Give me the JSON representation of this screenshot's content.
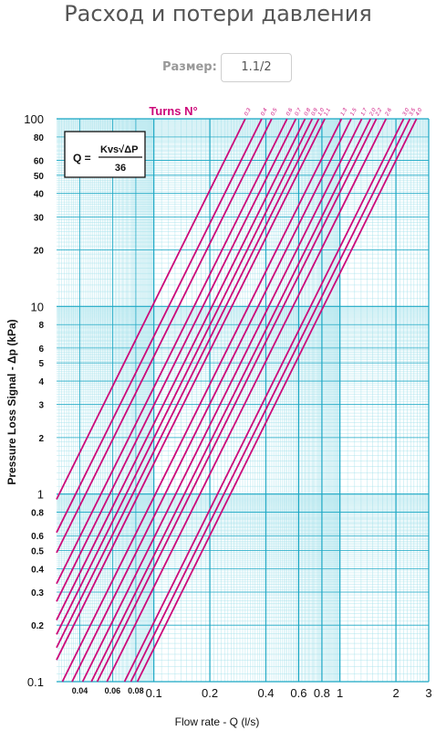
{
  "page": {
    "title": "Расход и потери давления"
  },
  "size_selector": {
    "label": "Размер:",
    "value": "1.1/2"
  },
  "chart_data": {
    "type": "line",
    "title": "Turns N°",
    "formula": {
      "lhs": "Q =",
      "num": "Kvs√ΔP",
      "den": "36"
    },
    "xlabel": "Flow rate - Q (l/s)",
    "ylabel": "Pressure Loss Signal  - Δp (kPa)",
    "x_scale": "log",
    "y_scale": "log",
    "xlim": [
      0.03,
      3
    ],
    "ylim": [
      0.1,
      100
    ],
    "x_ticks": [
      {
        "v": 0.04,
        "label": "0.04",
        "major": false
      },
      {
        "v": 0.06,
        "label": "0.06",
        "major": false
      },
      {
        "v": 0.08,
        "label": "0.08",
        "major": false
      },
      {
        "v": 0.1,
        "label": "0.1",
        "major": true
      },
      {
        "v": 0.2,
        "label": "0.2",
        "major": true
      },
      {
        "v": 0.4,
        "label": "0.4",
        "major": true
      },
      {
        "v": 0.6,
        "label": "0.6",
        "major": true
      },
      {
        "v": 0.8,
        "label": "0.8",
        "major": true
      },
      {
        "v": 1,
        "label": "1",
        "major": true
      },
      {
        "v": 2,
        "label": "2",
        "major": true
      },
      {
        "v": 3,
        "label": "3",
        "major": true
      }
    ],
    "y_ticks": [
      {
        "v": 0.1,
        "label": "0.1",
        "major": true
      },
      {
        "v": 0.2,
        "label": "0.2",
        "major": false
      },
      {
        "v": 0.3,
        "label": "0.3",
        "major": false
      },
      {
        "v": 0.4,
        "label": "0.4",
        "major": false
      },
      {
        "v": 0.5,
        "label": "0.5",
        "major": false
      },
      {
        "v": 0.6,
        "label": "0.6",
        "major": false
      },
      {
        "v": 0.8,
        "label": "0.8",
        "major": false
      },
      {
        "v": 1,
        "label": "1",
        "major": true
      },
      {
        "v": 2,
        "label": "2",
        "major": false
      },
      {
        "v": 3,
        "label": "3",
        "major": false
      },
      {
        "v": 4,
        "label": "4",
        "major": false
      },
      {
        "v": 5,
        "label": "5",
        "major": false
      },
      {
        "v": 6,
        "label": "6",
        "major": false
      },
      {
        "v": 8,
        "label": "8",
        "major": false
      },
      {
        "v": 10,
        "label": "10",
        "major": true
      },
      {
        "v": 20,
        "label": "20",
        "major": false
      },
      {
        "v": 30,
        "label": "30",
        "major": false
      },
      {
        "v": 40,
        "label": "40",
        "major": false
      },
      {
        "v": 50,
        "label": "50",
        "major": false
      },
      {
        "v": 60,
        "label": "60",
        "major": false
      },
      {
        "v": 80,
        "label": "80",
        "major": false
      },
      {
        "v": 100,
        "label": "100",
        "major": true
      }
    ],
    "series": [
      {
        "name": "0.3",
        "x_at_100kPa": 0.31
      },
      {
        "name": "0.4",
        "x_at_100kPa": 0.38
      },
      {
        "name": "0.5",
        "x_at_100kPa": 0.43
      },
      {
        "name": "0.6",
        "x_at_100kPa": 0.52
      },
      {
        "name": "0.7",
        "x_at_100kPa": 0.58
      },
      {
        "name": "0.8",
        "x_at_100kPa": 0.65
      },
      {
        "name": "0.9",
        "x_at_100kPa": 0.71
      },
      {
        "name": "1.0",
        "x_at_100kPa": 0.77
      },
      {
        "name": "1.1",
        "x_at_100kPa": 0.83
      },
      {
        "name": "1.3",
        "x_at_100kPa": 1.02
      },
      {
        "name": "1.5",
        "x_at_100kPa": 1.15
      },
      {
        "name": "1.7",
        "x_at_100kPa": 1.31
      },
      {
        "name": "2.0",
        "x_at_100kPa": 1.46
      },
      {
        "name": "2.2",
        "x_at_100kPa": 1.57
      },
      {
        "name": "2.6",
        "x_at_100kPa": 1.77
      },
      {
        "name": "3.0",
        "x_at_100kPa": 2.2
      },
      {
        "name": "3.5",
        "x_at_100kPa": 2.38
      },
      {
        "name": "4.0",
        "x_at_100kPa": 2.58
      }
    ],
    "colors": {
      "curve": "#cc0a7a",
      "grid_minor": "#9fe0ea",
      "grid_major": "#1aa7c4",
      "title": "#cc0a7a",
      "axis_text": "#111111"
    }
  }
}
